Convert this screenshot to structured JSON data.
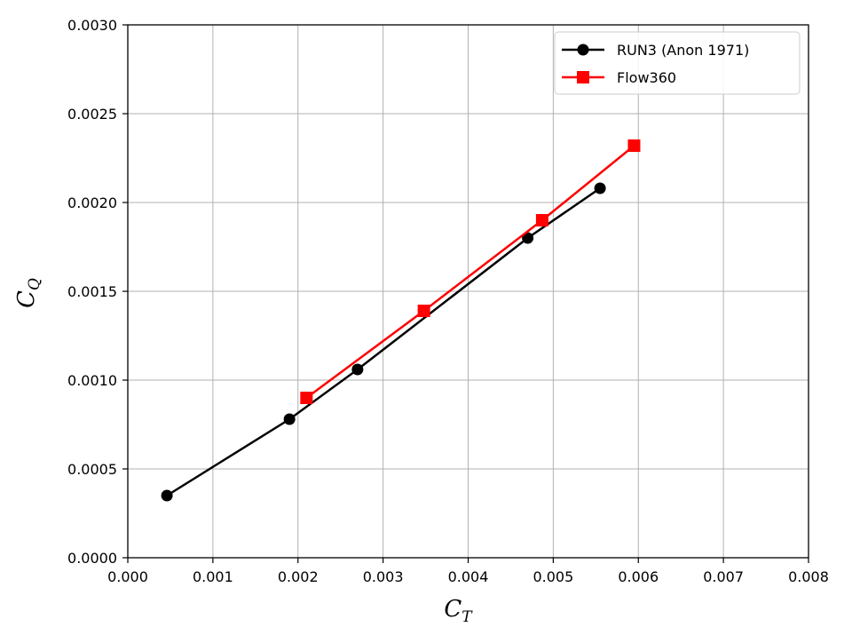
{
  "chart_data": {
    "type": "line",
    "xlabel": {
      "main": "C",
      "sub": "T"
    },
    "ylabel": {
      "main": "C",
      "sub": "Q"
    },
    "xlim": [
      0.0,
      0.008
    ],
    "ylim": [
      0.0,
      0.003
    ],
    "xticks": [
      "0.000",
      "0.001",
      "0.002",
      "0.003",
      "0.004",
      "0.005",
      "0.006",
      "0.007",
      "0.008"
    ],
    "yticks": [
      "0.0000",
      "0.0005",
      "0.0010",
      "0.0015",
      "0.0020",
      "0.0025",
      "0.0030"
    ],
    "grid": true,
    "legend_position": "top-right",
    "series": [
      {
        "name": "RUN3 (Anon 1971)",
        "color": "#000000",
        "marker": "circle",
        "x": [
          0.00046,
          0.0019,
          0.0027,
          0.0047,
          0.00555
        ],
        "y": [
          0.00035,
          0.00078,
          0.00106,
          0.0018,
          0.00208
        ]
      },
      {
        "name": "Flow360",
        "color": "#ff0000",
        "marker": "square",
        "x": [
          0.0021,
          0.00348,
          0.00487,
          0.00595
        ],
        "y": [
          0.0009,
          0.00139,
          0.0019,
          0.00232
        ]
      }
    ]
  }
}
